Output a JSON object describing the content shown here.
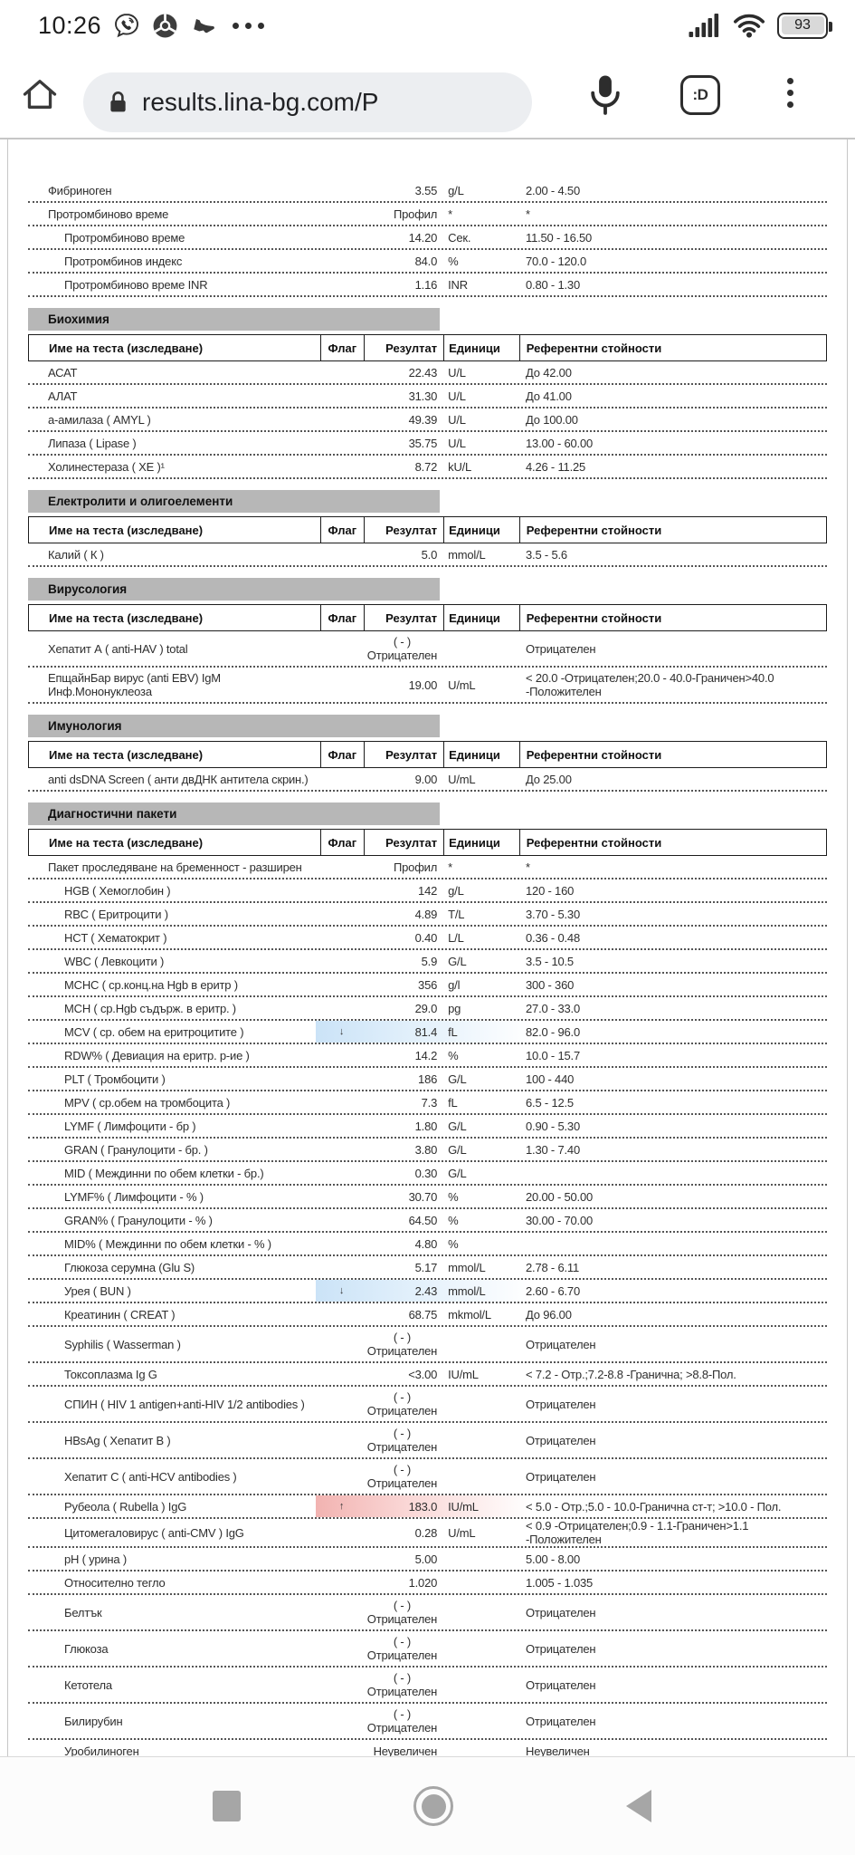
{
  "status_bar": {
    "time": "10:26",
    "battery_percent": "93"
  },
  "toolbar": {
    "url": "results.lina-bg.com/P",
    "tab_switcher_label": ":D"
  },
  "colors": {
    "section_header_bg": "#b7b7b7",
    "flag_low_highlight": "#cbe3f7",
    "flag_high_highlight": "#f2b3b1"
  },
  "report": {
    "columns": {
      "name": "Име на теста (изследване)",
      "flag": "Флаг",
      "result": "Резултат",
      "units": "Единици",
      "reference": "Референтни стойности"
    },
    "sections": [
      {
        "title": "",
        "rows": [
          {
            "name": "Фибриноген",
            "result": "3.55",
            "units": "g/L",
            "ref": "2.00 - 4.50"
          },
          {
            "name": "Протромбиново време",
            "result": "Профил",
            "units": "*",
            "ref": "*"
          },
          {
            "name": "Протромбиново време",
            "indent": true,
            "result": "14.20",
            "units": "Сек.",
            "ref": "11.50 - 16.50"
          },
          {
            "name": "Протромбинов индекс",
            "indent": true,
            "result": "84.0",
            "units": "%",
            "ref": "70.0 - 120.0"
          },
          {
            "name": "Протромбиново време INR",
            "indent": true,
            "result": "1.16",
            "units": "INR",
            "ref": "0.80 - 1.30"
          }
        ]
      },
      {
        "title": "Биохимия",
        "rows": [
          {
            "name": "АСАТ",
            "result": "22.43",
            "units": "U/L",
            "ref": "До 42.00"
          },
          {
            "name": "АЛАТ",
            "result": "31.30",
            "units": "U/L",
            "ref": "До 41.00"
          },
          {
            "name": "а-амилаза ( AMYL )",
            "result": "49.39",
            "units": "U/L",
            "ref": "До 100.00"
          },
          {
            "name": "Липаза ( Lipase )",
            "result": "35.75",
            "units": "U/L",
            "ref": "13.00 - 60.00"
          },
          {
            "name": "Холинестераза ( ХЕ )¹",
            "result": "8.72",
            "units": "kU/L",
            "ref": "4.26 - 11.25"
          }
        ]
      },
      {
        "title": "Електролити и олигоелементи",
        "rows": [
          {
            "name": "Калий ( К )",
            "result": "5.0",
            "units": "mmol/L",
            "ref": "3.5 - 5.6"
          }
        ]
      },
      {
        "title": "Вирусология",
        "rows": [
          {
            "name": "Хепатит А ( anti-HAV ) total",
            "result_lines": [
              "( - )",
              "Отрицателен"
            ],
            "ref": "Отрицателен"
          },
          {
            "name_lines": [
              "ЕпщайнБар вирус (anti EBV) IgM",
              "Инф.Мононуклеоза"
            ],
            "result": "19.00",
            "units": "U/mL",
            "ref_lines": [
              "< 20.0 -Отрицателен;20.0 - 40.0-Граничен>40.0",
              "-Положителен"
            ]
          }
        ]
      },
      {
        "title": "Имунология",
        "rows": [
          {
            "name": "anti dsDNA Screen ( анти двДНК антитела скрин.)",
            "result": "9.00",
            "units": "U/mL",
            "ref": "До 25.00"
          }
        ]
      },
      {
        "title": "Диагностични пакети",
        "rows": [
          {
            "name": "Пакет проследяване на бременност - разширен",
            "result": "Профил",
            "units": "*",
            "ref": "*"
          },
          {
            "name": "HGB ( Хемоглобин )",
            "indent": true,
            "result": "142",
            "units": "g/L",
            "ref": "120 - 160"
          },
          {
            "name": "RBC ( Еритроцити )",
            "indent": true,
            "result": "4.89",
            "units": "T/L",
            "ref": "3.70 - 5.30"
          },
          {
            "name": "HCT ( Хематокрит )",
            "indent": true,
            "result": "0.40",
            "units": "L/L",
            "ref": "0.36 - 0.48"
          },
          {
            "name": "WBC ( Левкоцити )",
            "indent": true,
            "result": "5.9",
            "units": "G/L",
            "ref": "3.5 - 10.5"
          },
          {
            "name": "MCHC ( ср.конц.на Hgb в еритр )",
            "indent": true,
            "result": "356",
            "units": "g/l",
            "ref": "300 - 360"
          },
          {
            "name": "MCH ( ср.Hgb съдърж. в еритр. )",
            "indent": true,
            "result": "29.0",
            "units": "pg",
            "ref": "27.0 - 33.0"
          },
          {
            "name": "MCV ( ср. обем на еритроцитите )",
            "indent": true,
            "flag": "↓",
            "highlight": "low",
            "result": "81.4",
            "units": "fL",
            "ref": "82.0 - 96.0"
          },
          {
            "name": "RDW% ( Девиация на еритр. р-ие )",
            "indent": true,
            "result": "14.2",
            "units": "%",
            "ref": "10.0 - 15.7"
          },
          {
            "name": "PLT ( Тромбоцити )",
            "indent": true,
            "result": "186",
            "units": "G/L",
            "ref": "100 - 440"
          },
          {
            "name": "MPV ( ср.обем на тромбоцита )",
            "indent": true,
            "result": "7.3",
            "units": "fL",
            "ref": "6.5 - 12.5"
          },
          {
            "name": "LYMF ( Лимфоцити - бр )",
            "indent": true,
            "result": "1.80",
            "units": "G/L",
            "ref": "0.90 - 5.30"
          },
          {
            "name": "GRAN ( Гранулоцити - бр. )",
            "indent": true,
            "result": "3.80",
            "units": "G/L",
            "ref": "1.30 - 7.40"
          },
          {
            "name": "MID ( Междинни по обем клетки - бр.)",
            "indent": true,
            "result": "0.30",
            "units": "G/L",
            "ref": ""
          },
          {
            "name": "LYMF% ( Лимфоцити - % )",
            "indent": true,
            "result": "30.70",
            "units": "%",
            "ref": "20.00 - 50.00"
          },
          {
            "name": "GRAN% ( Гранулоцити - % )",
            "indent": true,
            "result": "64.50",
            "units": "%",
            "ref": "30.00 - 70.00"
          },
          {
            "name": "MID% ( Междинни по обем клетки - % )",
            "indent": true,
            "result": "4.80",
            "units": "%",
            "ref": ""
          },
          {
            "name": "Глюкоза серумна (Glu S)",
            "indent": true,
            "result": "5.17",
            "units": "mmol/L",
            "ref": "2.78 - 6.11"
          },
          {
            "name": "Урея ( BUN )",
            "indent": true,
            "flag": "↓",
            "highlight": "low",
            "result": "2.43",
            "units": "mmol/L",
            "ref": "2.60 - 6.70"
          },
          {
            "name": "Креатинин ( CREAT )",
            "indent": true,
            "result": "68.75",
            "units": "mkmol/L",
            "ref": "До 96.00"
          },
          {
            "name": "Syphilis ( Wasserman )",
            "indent": true,
            "result_lines": [
              "( - )",
              "Отрицателен"
            ],
            "ref": "Отрицателен"
          },
          {
            "name": "Токсоплазма Ig G",
            "indent": true,
            "result": "<3.00",
            "units": "IU/mL",
            "ref": "< 7.2 - Отр.;7.2-8.8 -Гранична; >8.8-Пол."
          },
          {
            "name": "СПИН ( HIV 1 antigen+anti-HIV 1/2 antibodies )",
            "indent": true,
            "result_lines": [
              "( - )",
              "Отрицателен"
            ],
            "ref": "Отрицателен"
          },
          {
            "name": "HBsAg ( Хепатит В )",
            "indent": true,
            "result_lines": [
              "( - )",
              "Отрицателен"
            ],
            "ref": "Отрицателен"
          },
          {
            "name": "Хепатит С ( anti-HCV antibodies )",
            "indent": true,
            "result_lines": [
              "( - )",
              "Отрицателен"
            ],
            "ref": "Отрицателен"
          },
          {
            "name": "Рубеола ( Rubella ) IgG",
            "indent": true,
            "flag": "↑",
            "highlight": "high",
            "result": "183.0",
            "units": "IU/mL",
            "ref": "< 5.0 - Отр.;5.0 - 10.0-Гранична ст-т; >10.0 - Пол."
          },
          {
            "name": "Цитомегаловирус ( anti-CMV ) IgG",
            "indent": true,
            "result": "0.28",
            "units": "U/mL",
            "ref": "< 0.9 -Отрицателен;0.9 - 1.1-Граничен>1.1 -Положителен"
          },
          {
            "name": "pH ( урина )",
            "indent": true,
            "result": "5.00",
            "units": "",
            "ref": "5.00 - 8.00"
          },
          {
            "name": "Относително тегло",
            "indent": true,
            "result": "1.020",
            "units": "",
            "ref": "1.005 - 1.035"
          },
          {
            "name": "Белтък",
            "indent": true,
            "result_lines": [
              "( - )",
              "Отрицателен"
            ],
            "ref": "Отрицателен"
          },
          {
            "name": "Глюкоза",
            "indent": true,
            "result_lines": [
              "( - )",
              "Отрицателен"
            ],
            "ref": "Отрицателен"
          },
          {
            "name": "Кетотела",
            "indent": true,
            "result_lines": [
              "( - )",
              "Отрицателен"
            ],
            "ref": "Отрицателен"
          },
          {
            "name": "Билирубин",
            "indent": true,
            "result_lines": [
              "( - )",
              "Отрицателен"
            ],
            "ref": "Отрицателен"
          },
          {
            "name": "Уробилиноген",
            "indent": true,
            "result": "Неувеличен",
            "units": "",
            "ref": "Неувеличен"
          }
        ]
      }
    ]
  }
}
